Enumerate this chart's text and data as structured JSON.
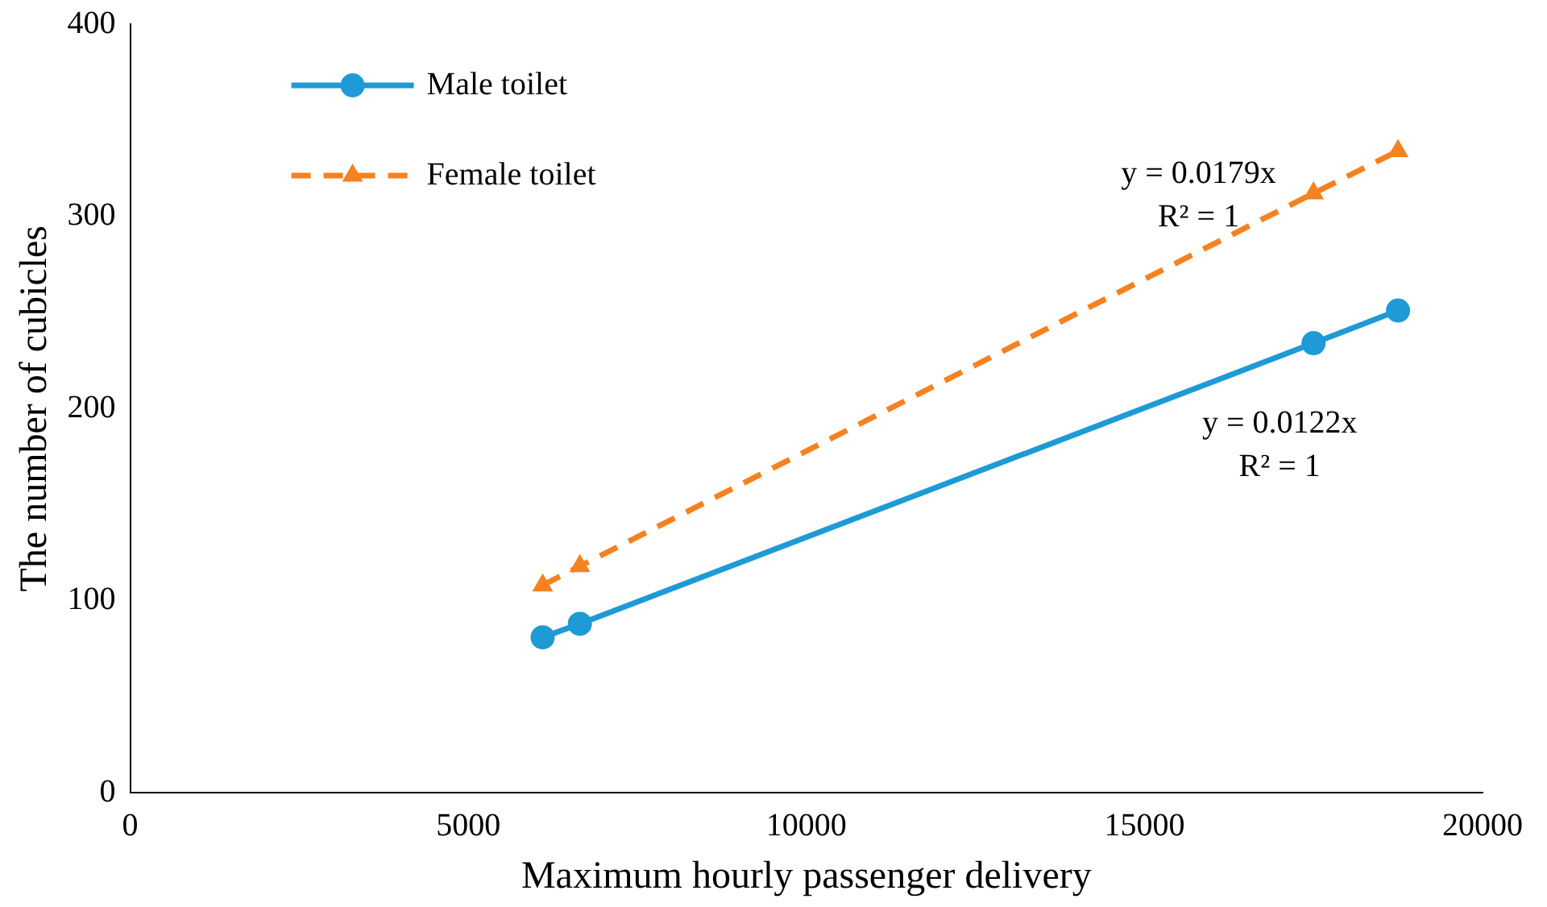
{
  "chart_data": {
    "type": "line",
    "xlabel": "Maximum hourly passenger delivery",
    "ylabel": "The number of cubicles",
    "xlim": [
      0,
      20000
    ],
    "xticks": [
      0,
      5000,
      10000,
      15000,
      20000
    ],
    "ylim": [
      0,
      400
    ],
    "yticks": [
      0,
      100,
      200,
      300,
      400
    ],
    "grid": false,
    "legend": "top left",
    "series": [
      {
        "name": "Male toilet",
        "color": "#1e9ad6",
        "marker": "circle",
        "line_style": "solid",
        "x": [
          6100,
          6650,
          17500,
          18750
        ],
        "values": [
          81,
          88,
          234,
          251
        ]
      },
      {
        "name": "Female toilet",
        "color": "#f58220",
        "marker": "triangle",
        "line_style": "dashed",
        "x": [
          6100,
          6650,
          17500,
          18750
        ],
        "values": [
          108,
          118,
          312,
          334
        ]
      }
    ],
    "annotations": [
      "y = 0.0179x\nR² = 1",
      "y = 0.0122x\nR² = 1"
    ]
  }
}
